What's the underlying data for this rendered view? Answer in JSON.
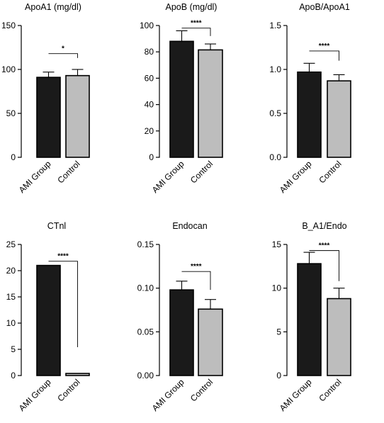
{
  "chart_data": [
    {
      "type": "bar",
      "title": "ApoA1 (mg/dl)",
      "categories": [
        "AMI Group",
        "Control"
      ],
      "values": [
        91,
        93
      ],
      "errors": [
        6,
        7
      ],
      "ylim": [
        0,
        150
      ],
      "yticks": [
        "0",
        "50",
        "100",
        "150"
      ],
      "yticks_values": [
        0,
        50,
        100,
        150
      ],
      "colors": [
        "#1a1a1a",
        "#bdbdbd"
      ],
      "significance": {
        "label": "*",
        "level": 118,
        "drop": 5
      }
    },
    {
      "type": "bar",
      "title": "ApoB (mg/dl)",
      "categories": [
        "AMI Group",
        "Control"
      ],
      "values": [
        88,
        81.5
      ],
      "errors": [
        8,
        4.5
      ],
      "ylim": [
        0,
        100
      ],
      "yticks": [
        "0",
        "20",
        "40",
        "60",
        "80",
        "100"
      ],
      "yticks_values": [
        0,
        20,
        40,
        60,
        80,
        100
      ],
      "colors": [
        "#1a1a1a",
        "#bdbdbd"
      ],
      "significance": {
        "label": "****",
        "level": 98,
        "drop": 6
      }
    },
    {
      "type": "bar",
      "title": "ApoB/ApoA1",
      "categories": [
        "AMI Group",
        "Control"
      ],
      "values": [
        0.97,
        0.87
      ],
      "errors": [
        0.1,
        0.07
      ],
      "ylim": [
        0,
        1.5
      ],
      "yticks": [
        "0.0",
        "0.5",
        "1.0",
        "1.5"
      ],
      "yticks_values": [
        0,
        0.5,
        1.0,
        1.5
      ],
      "colors": [
        "#1a1a1a",
        "#bdbdbd"
      ],
      "significance": {
        "label": "****",
        "level": 1.21,
        "drop": 0.11
      }
    },
    {
      "type": "bar",
      "title": "CTnl",
      "categories": [
        "AMI Group",
        "Control"
      ],
      "values": [
        21,
        0.4
      ],
      "errors": [
        0,
        0
      ],
      "ylim": [
        0,
        25
      ],
      "yticks": [
        "0",
        "5",
        "10",
        "15",
        "20",
        "25"
      ],
      "yticks_values": [
        0,
        5,
        10,
        15,
        20,
        25
      ],
      "colors": [
        "#1a1a1a",
        "#bdbdbd"
      ],
      "significance": {
        "label": "****",
        "level": 21.8,
        "drop": 16.4
      }
    },
    {
      "type": "bar",
      "title": "Endocan",
      "categories": [
        "AMI Group",
        "Control"
      ],
      "values": [
        0.098,
        0.076
      ],
      "errors": [
        0.01,
        0.011
      ],
      "ylim": [
        0,
        0.15
      ],
      "yticks": [
        "0.00",
        "0.05",
        "0.10",
        "0.15"
      ],
      "yticks_values": [
        0,
        0.05,
        0.1,
        0.15
      ],
      "colors": [
        "#1a1a1a",
        "#bdbdbd"
      ],
      "significance": {
        "label": "****",
        "level": 0.119,
        "drop": 0.021
      }
    },
    {
      "type": "bar",
      "title": "B_A1/Endo",
      "categories": [
        "AMI Group",
        "Control"
      ],
      "values": [
        12.8,
        8.8
      ],
      "errors": [
        1.3,
        1.2
      ],
      "ylim": [
        0,
        15
      ],
      "yticks": [
        "0",
        "5",
        "10",
        "15"
      ],
      "yticks_values": [
        0,
        5,
        10,
        15
      ],
      "colors": [
        "#1a1a1a",
        "#bdbdbd"
      ],
      "significance": {
        "label": "****",
        "level": 14.3,
        "drop": 3.5
      }
    }
  ]
}
